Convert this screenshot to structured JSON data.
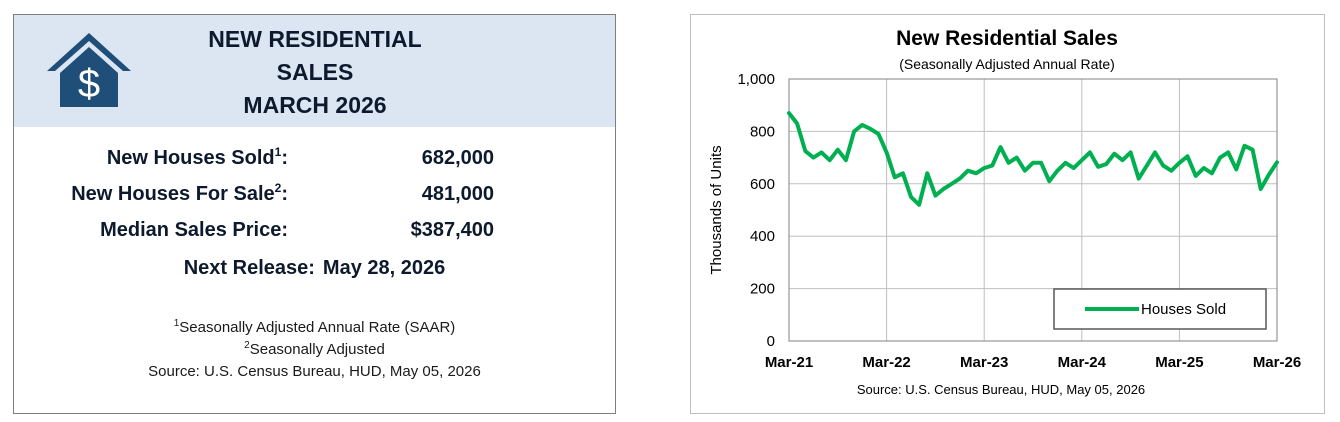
{
  "summary": {
    "title_lines": [
      "NEW RESIDENTIAL",
      "SALES",
      "MARCH 2026"
    ],
    "stats": [
      {
        "label": "New Houses Sold",
        "sup": "1",
        "value": "682,000"
      },
      {
        "label": "New Houses For Sale",
        "sup": "2",
        "value": "481,000"
      },
      {
        "label": "Median Sales Price",
        "sup": "",
        "value": "$387,400"
      }
    ],
    "release_label": "Next Release:",
    "release_date": "May 28, 2026",
    "footnotes": [
      {
        "sup": "1",
        "text": "Seasonally Adjusted Annual Rate (SAAR)"
      },
      {
        "sup": "2",
        "text": "Seasonally Adjusted"
      }
    ],
    "source": "Source:  U.S. Census Bureau, HUD, May 05, 2026",
    "colors": {
      "header_bg": "#dce6f2",
      "logo": "#1f4e79",
      "text": "#0d1a2e"
    }
  },
  "chart_data": {
    "type": "line",
    "title": "New Residential Sales",
    "subtitle": "(Seasonally Adjusted Annual Rate)",
    "xlabel": "",
    "ylabel": "Thousands of Units",
    "ylim": [
      0,
      1000
    ],
    "y_ticks": [
      "0",
      "200",
      "400",
      "600",
      "800",
      "1,000"
    ],
    "y_tick_values": [
      0,
      200,
      400,
      600,
      800,
      1000
    ],
    "x_tick_labels": [
      "Mar-21",
      "Mar-22",
      "Mar-23",
      "Mar-24",
      "Mar-25",
      "Mar-26"
    ],
    "x_start": "Mar-21",
    "x_end": "Mar-26",
    "grid": true,
    "legend_position": "bottom-right",
    "source": "Source:  U.S. Census Bureau, HUD, May 05, 2026",
    "series": [
      {
        "name": "Houses Sold",
        "color": "#00b050",
        "values": [
          870,
          830,
          725,
          700,
          720,
          690,
          730,
          690,
          800,
          825,
          810,
          790,
          720,
          625,
          640,
          550,
          520,
          640,
          555,
          580,
          600,
          620,
          650,
          640,
          660,
          670,
          740,
          680,
          700,
          650,
          680,
          680,
          610,
          650,
          680,
          660,
          690,
          720,
          665,
          675,
          715,
          690,
          720,
          620,
          670,
          720,
          670,
          650,
          680,
          705,
          630,
          660,
          640,
          700,
          720,
          655,
          745,
          730,
          580,
          635,
          682
        ]
      }
    ]
  }
}
